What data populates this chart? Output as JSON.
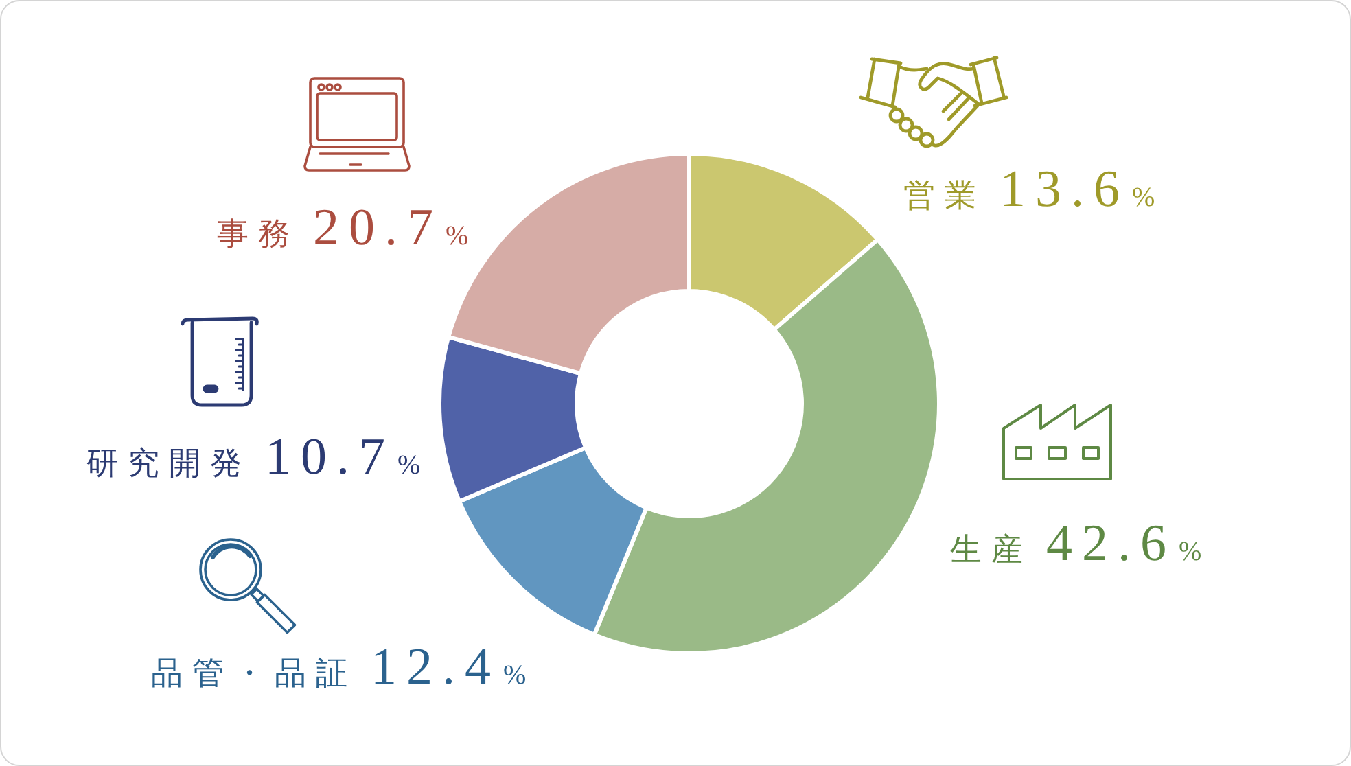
{
  "chart_data": {
    "type": "donut",
    "categories": [
      "営業",
      "生産",
      "品管・品証",
      "研究開発",
      "事務"
    ],
    "values": [
      13.6,
      42.6,
      12.4,
      10.7,
      20.7
    ],
    "colors": [
      "#cbc76f",
      "#9aba87",
      "#6196c0",
      "#5062a8",
      "#d6aca6"
    ],
    "value_labels": [
      "13.6%",
      "42.6%",
      "12.4%",
      "10.7%",
      "20.7%"
    ]
  }
}
